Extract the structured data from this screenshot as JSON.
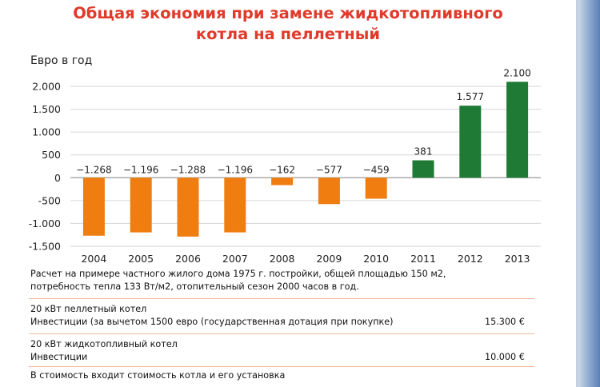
{
  "title_line1": "Общая экономия при замене жидкотопливного",
  "title_line2": "котла на пеллетный",
  "chart_data": {
    "type": "bar",
    "ylabel": "Евро в год",
    "categories": [
      "2004",
      "2005",
      "2006",
      "2007",
      "2008",
      "2009",
      "2010",
      "2011",
      "2012",
      "2013"
    ],
    "values": [
      -1268,
      -1196,
      -1288,
      -1196,
      -162,
      -577,
      -459,
      381,
      1577,
      2100
    ],
    "value_labels": [
      "−1.268",
      "−1.196",
      "−1.288",
      "−1.196",
      "−162",
      "−577",
      "−459",
      "381",
      "1.577",
      "2.100"
    ],
    "ylim": [
      -1500,
      2000
    ],
    "yticks": [
      2000,
      1500,
      1000,
      500,
      0,
      -500,
      -1000,
      -1500
    ],
    "ytick_labels": [
      "2.000",
      "1.500",
      "1.000",
      "500",
      "0",
      "-500",
      "-1.000",
      "-1.500"
    ],
    "grid": true,
    "colors": {
      "negative": "#f07d0f",
      "positive": "#1f7a35"
    }
  },
  "note_line1": "Расчет на примере частного жилого дома 1975 г. постройки, общей площадью 150 м2,",
  "note_line2": "потребность тепла 133 Вт/м2, отопительный сезон 2000 часов в год.",
  "pellet_title": "20 кВт пеллетный котел",
  "pellet_invest_label": "Инвестиции (за вычетом 1500 евро (государственная дотация при покупке)",
  "pellet_invest_value": "15.300 €",
  "oil_title": "20 кВт жидкотопливный котел",
  "oil_invest_label": "Инвестиции",
  "oil_invest_value": "10.000 €",
  "footer_note": "В стоимость входит стоимость котла и его установка"
}
